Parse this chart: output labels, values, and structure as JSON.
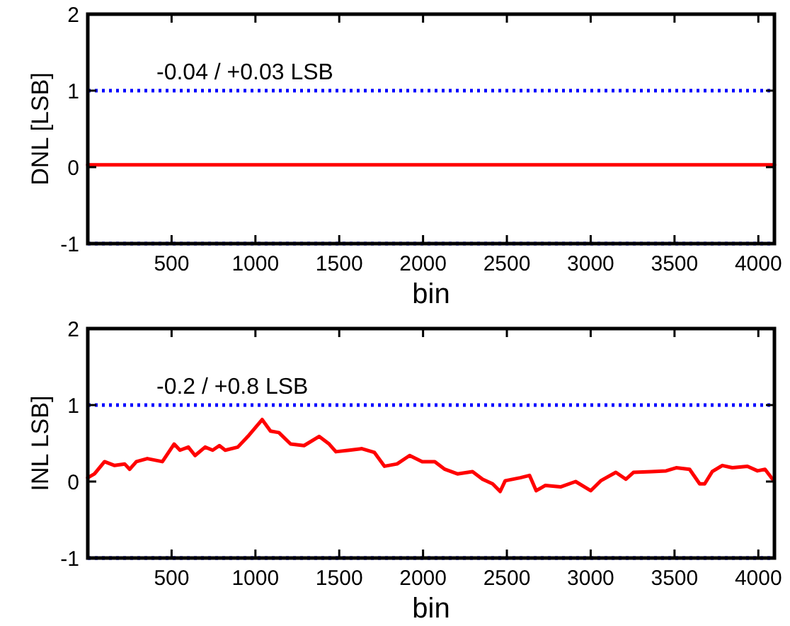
{
  "chart_data": [
    {
      "type": "line",
      "ylabel": "DNL [LSB]",
      "xlabel": "bin",
      "annotations": [
        "-0.04 / +0.03 LSB"
      ],
      "series": [
        {
          "color": "#ff0000",
          "x": [
            0,
            512,
            1024,
            1536,
            2048,
            2560,
            3072,
            3584,
            4096
          ],
          "values": [
            0.03,
            0.03,
            0.03,
            0.03,
            0.03,
            0.03,
            0.03,
            0.03,
            0.03
          ]
        }
      ],
      "xlim": [
        0,
        4096
      ],
      "xticks": [
        500,
        1000,
        1500,
        2000,
        2500,
        3000,
        3500,
        4000
      ],
      "ylim": [
        -1,
        2
      ],
      "yticks": [
        -1,
        0,
        1,
        2
      ],
      "ref_lines": [
        {
          "axis": "y",
          "value": 1,
          "color": "#0000ff",
          "line_style": "dotted"
        },
        {
          "axis": "y",
          "value": -1,
          "color": "#0000ff",
          "line_style": "dotted"
        }
      ],
      "grid": false
    },
    {
      "type": "line",
      "ylabel": "INL LSB]",
      "xlabel": "bin",
      "annotations": [
        "-0.2 / +0.8 LSB"
      ],
      "series": [
        {
          "color": "#ff0000",
          "x": [
            0,
            40,
            100,
            160,
            220,
            250,
            290,
            355,
            445,
            515,
            550,
            600,
            640,
            700,
            745,
            785,
            820,
            895,
            955,
            1040,
            1090,
            1140,
            1210,
            1290,
            1380,
            1440,
            1480,
            1560,
            1635,
            1710,
            1770,
            1845,
            1920,
            1995,
            2070,
            2130,
            2205,
            2295,
            2355,
            2415,
            2460,
            2490,
            2580,
            2635,
            2675,
            2730,
            2820,
            2910,
            3000,
            3060,
            3150,
            3210,
            3255,
            3365,
            3450,
            3510,
            3590,
            3650,
            3680,
            3725,
            3785,
            3845,
            3935,
            3995,
            4040,
            4085
          ],
          "values": [
            0.05,
            0.1,
            0.26,
            0.21,
            0.23,
            0.16,
            0.26,
            0.3,
            0.26,
            0.49,
            0.41,
            0.45,
            0.34,
            0.45,
            0.41,
            0.47,
            0.41,
            0.45,
            0.59,
            0.81,
            0.66,
            0.64,
            0.49,
            0.47,
            0.59,
            0.49,
            0.39,
            0.41,
            0.43,
            0.38,
            0.2,
            0.23,
            0.34,
            0.26,
            0.26,
            0.16,
            0.1,
            0.13,
            0.03,
            -0.03,
            -0.13,
            0.01,
            0.05,
            0.08,
            -0.12,
            -0.05,
            -0.07,
            0,
            -0.12,
            0.01,
            0.12,
            0.03,
            0.12,
            0.13,
            0.14,
            0.18,
            0.16,
            -0.03,
            -0.03,
            0.13,
            0.21,
            0.18,
            0.2,
            0.14,
            0.16,
            0.03
          ]
        }
      ],
      "xlim": [
        0,
        4096
      ],
      "xticks": [
        500,
        1000,
        1500,
        2000,
        2500,
        3000,
        3500,
        4000
      ],
      "ylim": [
        -1,
        2
      ],
      "yticks": [
        -1,
        0,
        1,
        2
      ],
      "ref_lines": [
        {
          "axis": "y",
          "value": 1,
          "color": "#0000ff",
          "line_style": "dotted"
        },
        {
          "axis": "y",
          "value": -1,
          "color": "#0000ff",
          "line_style": "dotted"
        }
      ],
      "grid": false
    }
  ]
}
